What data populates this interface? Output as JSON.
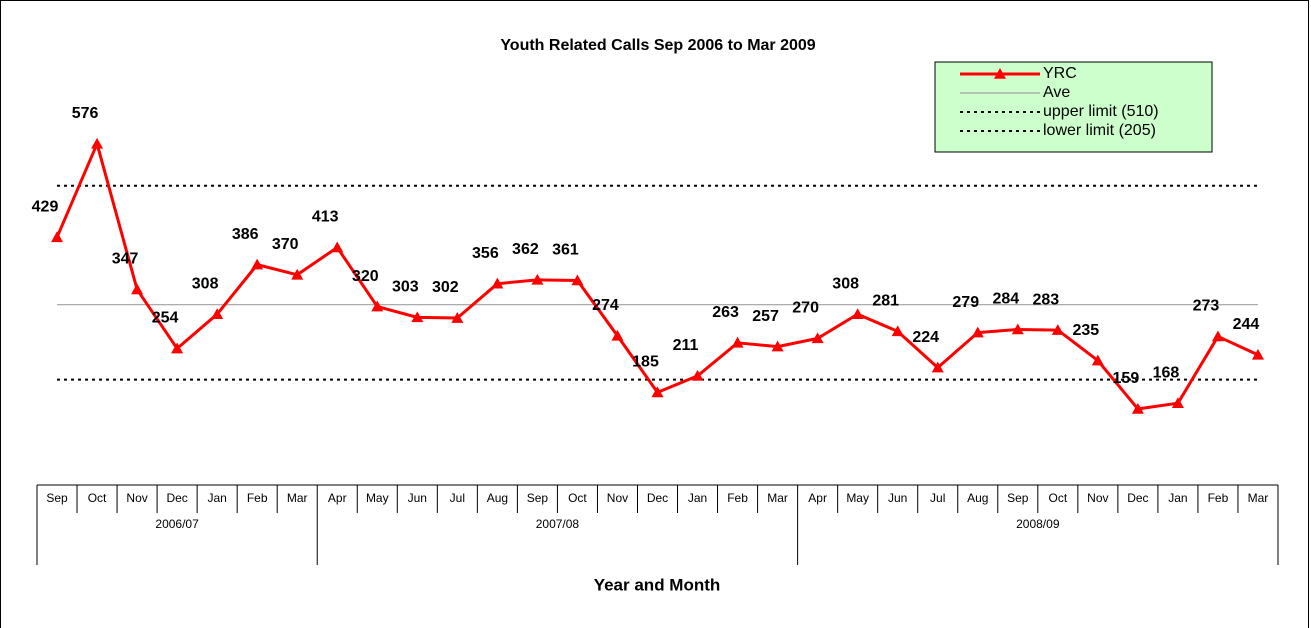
{
  "chart_data": {
    "type": "line",
    "title": "Youth Related Calls Sep 2006 to Mar 2009",
    "x_label": "Year and Month",
    "categories": [
      "Sep",
      "Oct",
      "Nov",
      "Dec",
      "Jan",
      "Feb",
      "Mar",
      "Apr",
      "May",
      "Jun",
      "Jul",
      "Aug",
      "Sep",
      "Oct",
      "Nov",
      "Dec",
      "Jan",
      "Feb",
      "Mar",
      "Apr",
      "May",
      "Jun",
      "Jul",
      "Aug",
      "Sep",
      "Oct",
      "Nov",
      "Dec",
      "Jan",
      "Feb",
      "Mar"
    ],
    "category_groups": [
      {
        "label": "2006/07",
        "span": 7
      },
      {
        "label": "2007/08",
        "span": 12
      },
      {
        "label": "2008/09",
        "span": 12
      }
    ],
    "series": [
      {
        "name": "YRC",
        "color": "#ff0000",
        "values": [
          429,
          576,
          347,
          254,
          308,
          386,
          370,
          413,
          320,
          303,
          302,
          356,
          362,
          361,
          274,
          185,
          211,
          263,
          257,
          270,
          308,
          281,
          224,
          279,
          284,
          283,
          235,
          159,
          168,
          273,
          244
        ]
      }
    ],
    "reference_lines": [
      {
        "name": "Ave",
        "value": 323,
        "color": "#a0a0a0",
        "style": "solid"
      },
      {
        "name": "upper limit (510)",
        "value": 510,
        "color": "#000000",
        "style": "dotted"
      },
      {
        "name": "lower limit (205)",
        "value": 205,
        "color": "#000000",
        "style": "dotted"
      }
    ],
    "ylim": [
      0,
      700
    ],
    "legend": "top-right",
    "legend_color": "#ccffcc"
  }
}
